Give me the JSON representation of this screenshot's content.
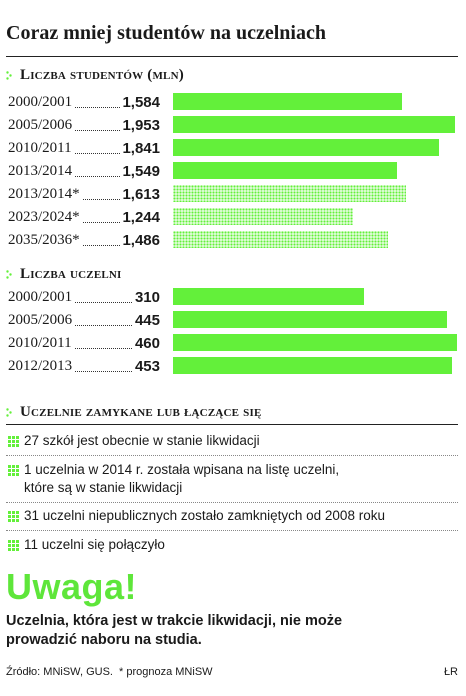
{
  "title": "Coraz mniej studentów na uczelniach",
  "colors": {
    "accent": "#63f03a",
    "uwaga": "#5ee63a",
    "text": "#1a1a1a"
  },
  "chart_data": [
    {
      "type": "bar",
      "title": "Liczba studentów (mln)",
      "categories": [
        "2000/2001",
        "2005/2006",
        "2010/2011",
        "2013/2014",
        "2013/2014*",
        "2023/2024*",
        "2035/2036*"
      ],
      "values": [
        1.584,
        1.953,
        1.841,
        1.549,
        1.613,
        1.244,
        1.486
      ],
      "value_labels": [
        "1,584",
        "1,953",
        "1,841",
        "1,549",
        "1,613",
        "1,244",
        "1,486"
      ],
      "projected": [
        false,
        false,
        false,
        false,
        true,
        true,
        true
      ],
      "xlim": [
        0,
        1.98
      ]
    },
    {
      "type": "bar",
      "title": "Liczba uczelni",
      "categories": [
        "2000/2001",
        "2005/2006",
        "2010/2011",
        "2012/2013"
      ],
      "values": [
        310,
        445,
        460,
        453
      ],
      "value_labels": [
        "310",
        "445",
        "460",
        "453"
      ],
      "projected": [
        false,
        false,
        false,
        false
      ],
      "xlim": [
        0,
        464
      ]
    }
  ],
  "closing": {
    "heading": "Uczelnie zamykane lub łączące się",
    "items": [
      {
        "lines": [
          "27 szkół jest obecnie w stanie likwidacji"
        ]
      },
      {
        "lines": [
          "1 uczelnia w 2014 r. została wpisana na listę uczelni,",
          "które są w stanie likwidacji"
        ]
      },
      {
        "lines": [
          "31 uczelni  niepublicznych zostało zamkniętych od 2008 roku"
        ]
      },
      {
        "lines": [
          "11 uczelni się połączyło"
        ]
      }
    ]
  },
  "uwaga": "Uwaga!",
  "warning": [
    "Uczelnia, która jest w trakcie likwidacji, nie może",
    "prowadzić naboru na studia."
  ],
  "footer": {
    "source": "Źródło: MNiSW, GUS.",
    "note": "* prognoza MNiSW",
    "author": "ŁR"
  }
}
